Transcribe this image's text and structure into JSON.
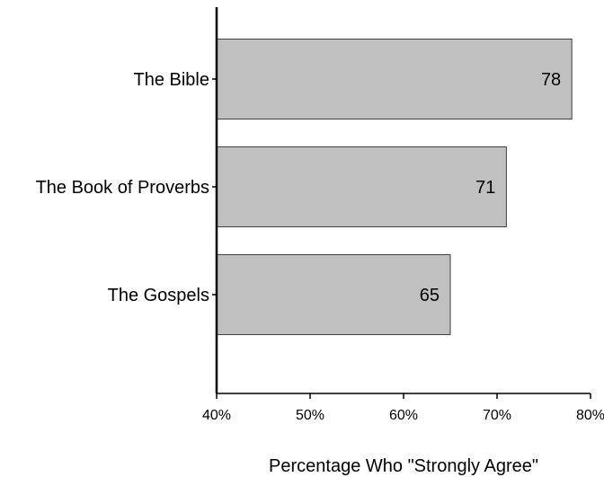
{
  "chart_data": {
    "type": "bar",
    "orientation": "horizontal",
    "categories": [
      "The Bible",
      "The Book of Proverbs",
      "The Gospels"
    ],
    "values": [
      78,
      71,
      65
    ],
    "data_labels": [
      "78",
      "71",
      "65"
    ],
    "xlabel": "Percentage Who \"Strongly Agree\"",
    "xlim": [
      40,
      80
    ],
    "x_ticks": [
      40,
      50,
      60,
      70,
      80
    ],
    "x_tick_labels": [
      "40%",
      "50%",
      "60%",
      "70%",
      "80%"
    ],
    "grid": false,
    "bar_color": "#c0c0c0",
    "bar_edge_color": "#404040"
  }
}
